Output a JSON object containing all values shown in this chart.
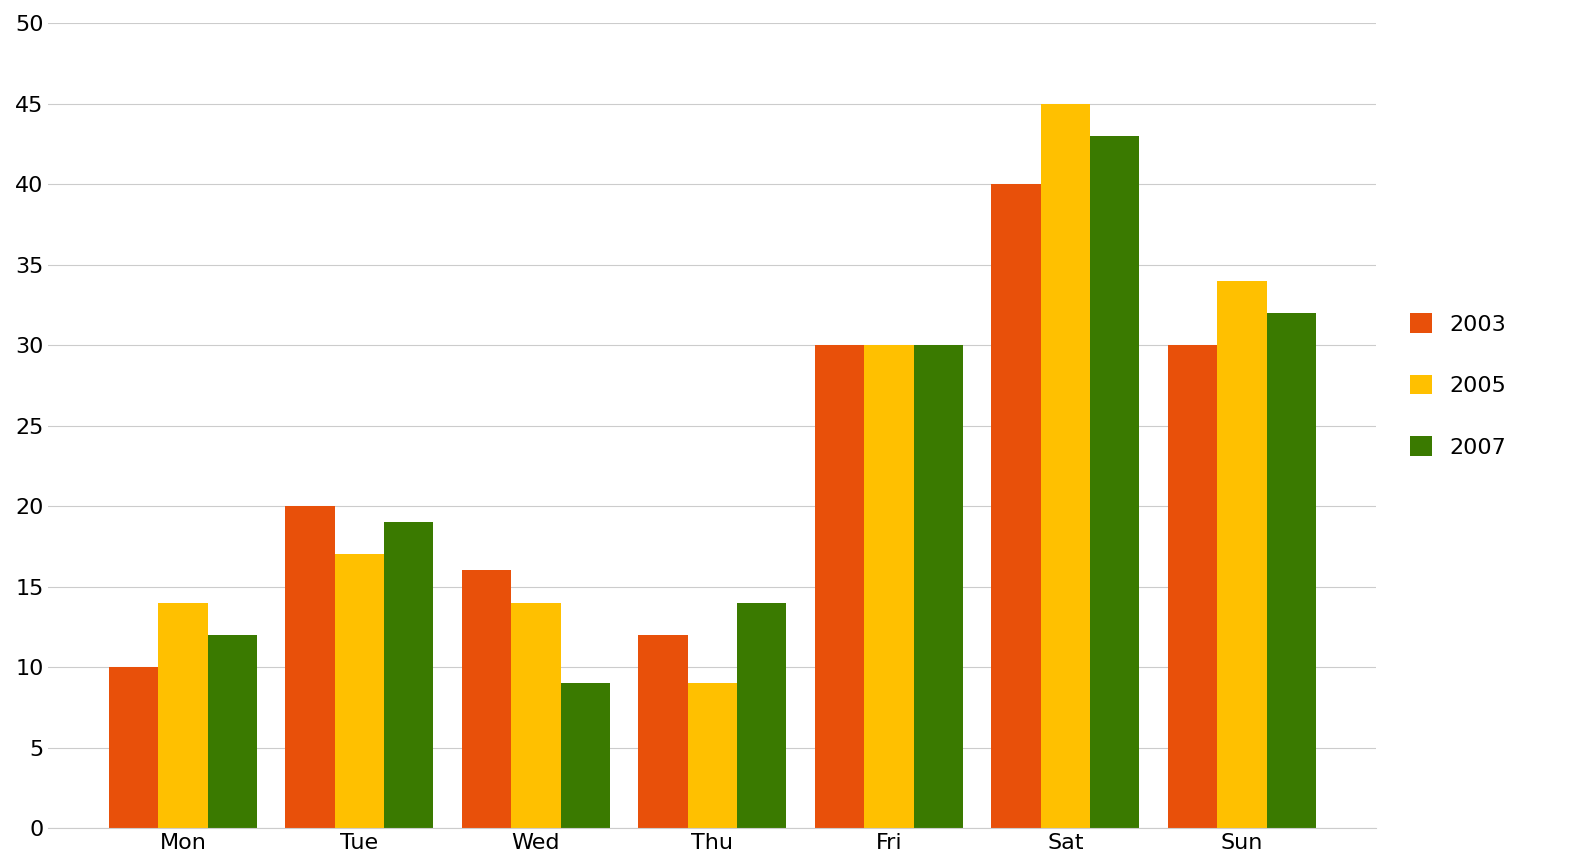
{
  "categories": [
    "Mon",
    "Tue",
    "Wed",
    "Thu",
    "Fri",
    "Sat",
    "Sun"
  ],
  "series": [
    {
      "label": "2003",
      "color": "#E8500A",
      "values": [
        10,
        20,
        16,
        12,
        30,
        40,
        30
      ]
    },
    {
      "label": "2005",
      "color": "#FFC000",
      "values": [
        14,
        17,
        14,
        9,
        30,
        45,
        34
      ]
    },
    {
      "label": "2007",
      "color": "#3A7A00",
      "values": [
        12,
        19,
        9,
        14,
        30,
        43,
        32
      ]
    }
  ],
  "ylim": [
    0,
    50
  ],
  "yticks": [
    0,
    5,
    10,
    15,
    20,
    25,
    30,
    35,
    40,
    45,
    50
  ],
  "background_color": "#ffffff",
  "grid_color": "#cccccc",
  "bar_width": 0.28,
  "legend_fontsize": 16,
  "tick_fontsize": 16,
  "axis_line_color": "#cccccc"
}
